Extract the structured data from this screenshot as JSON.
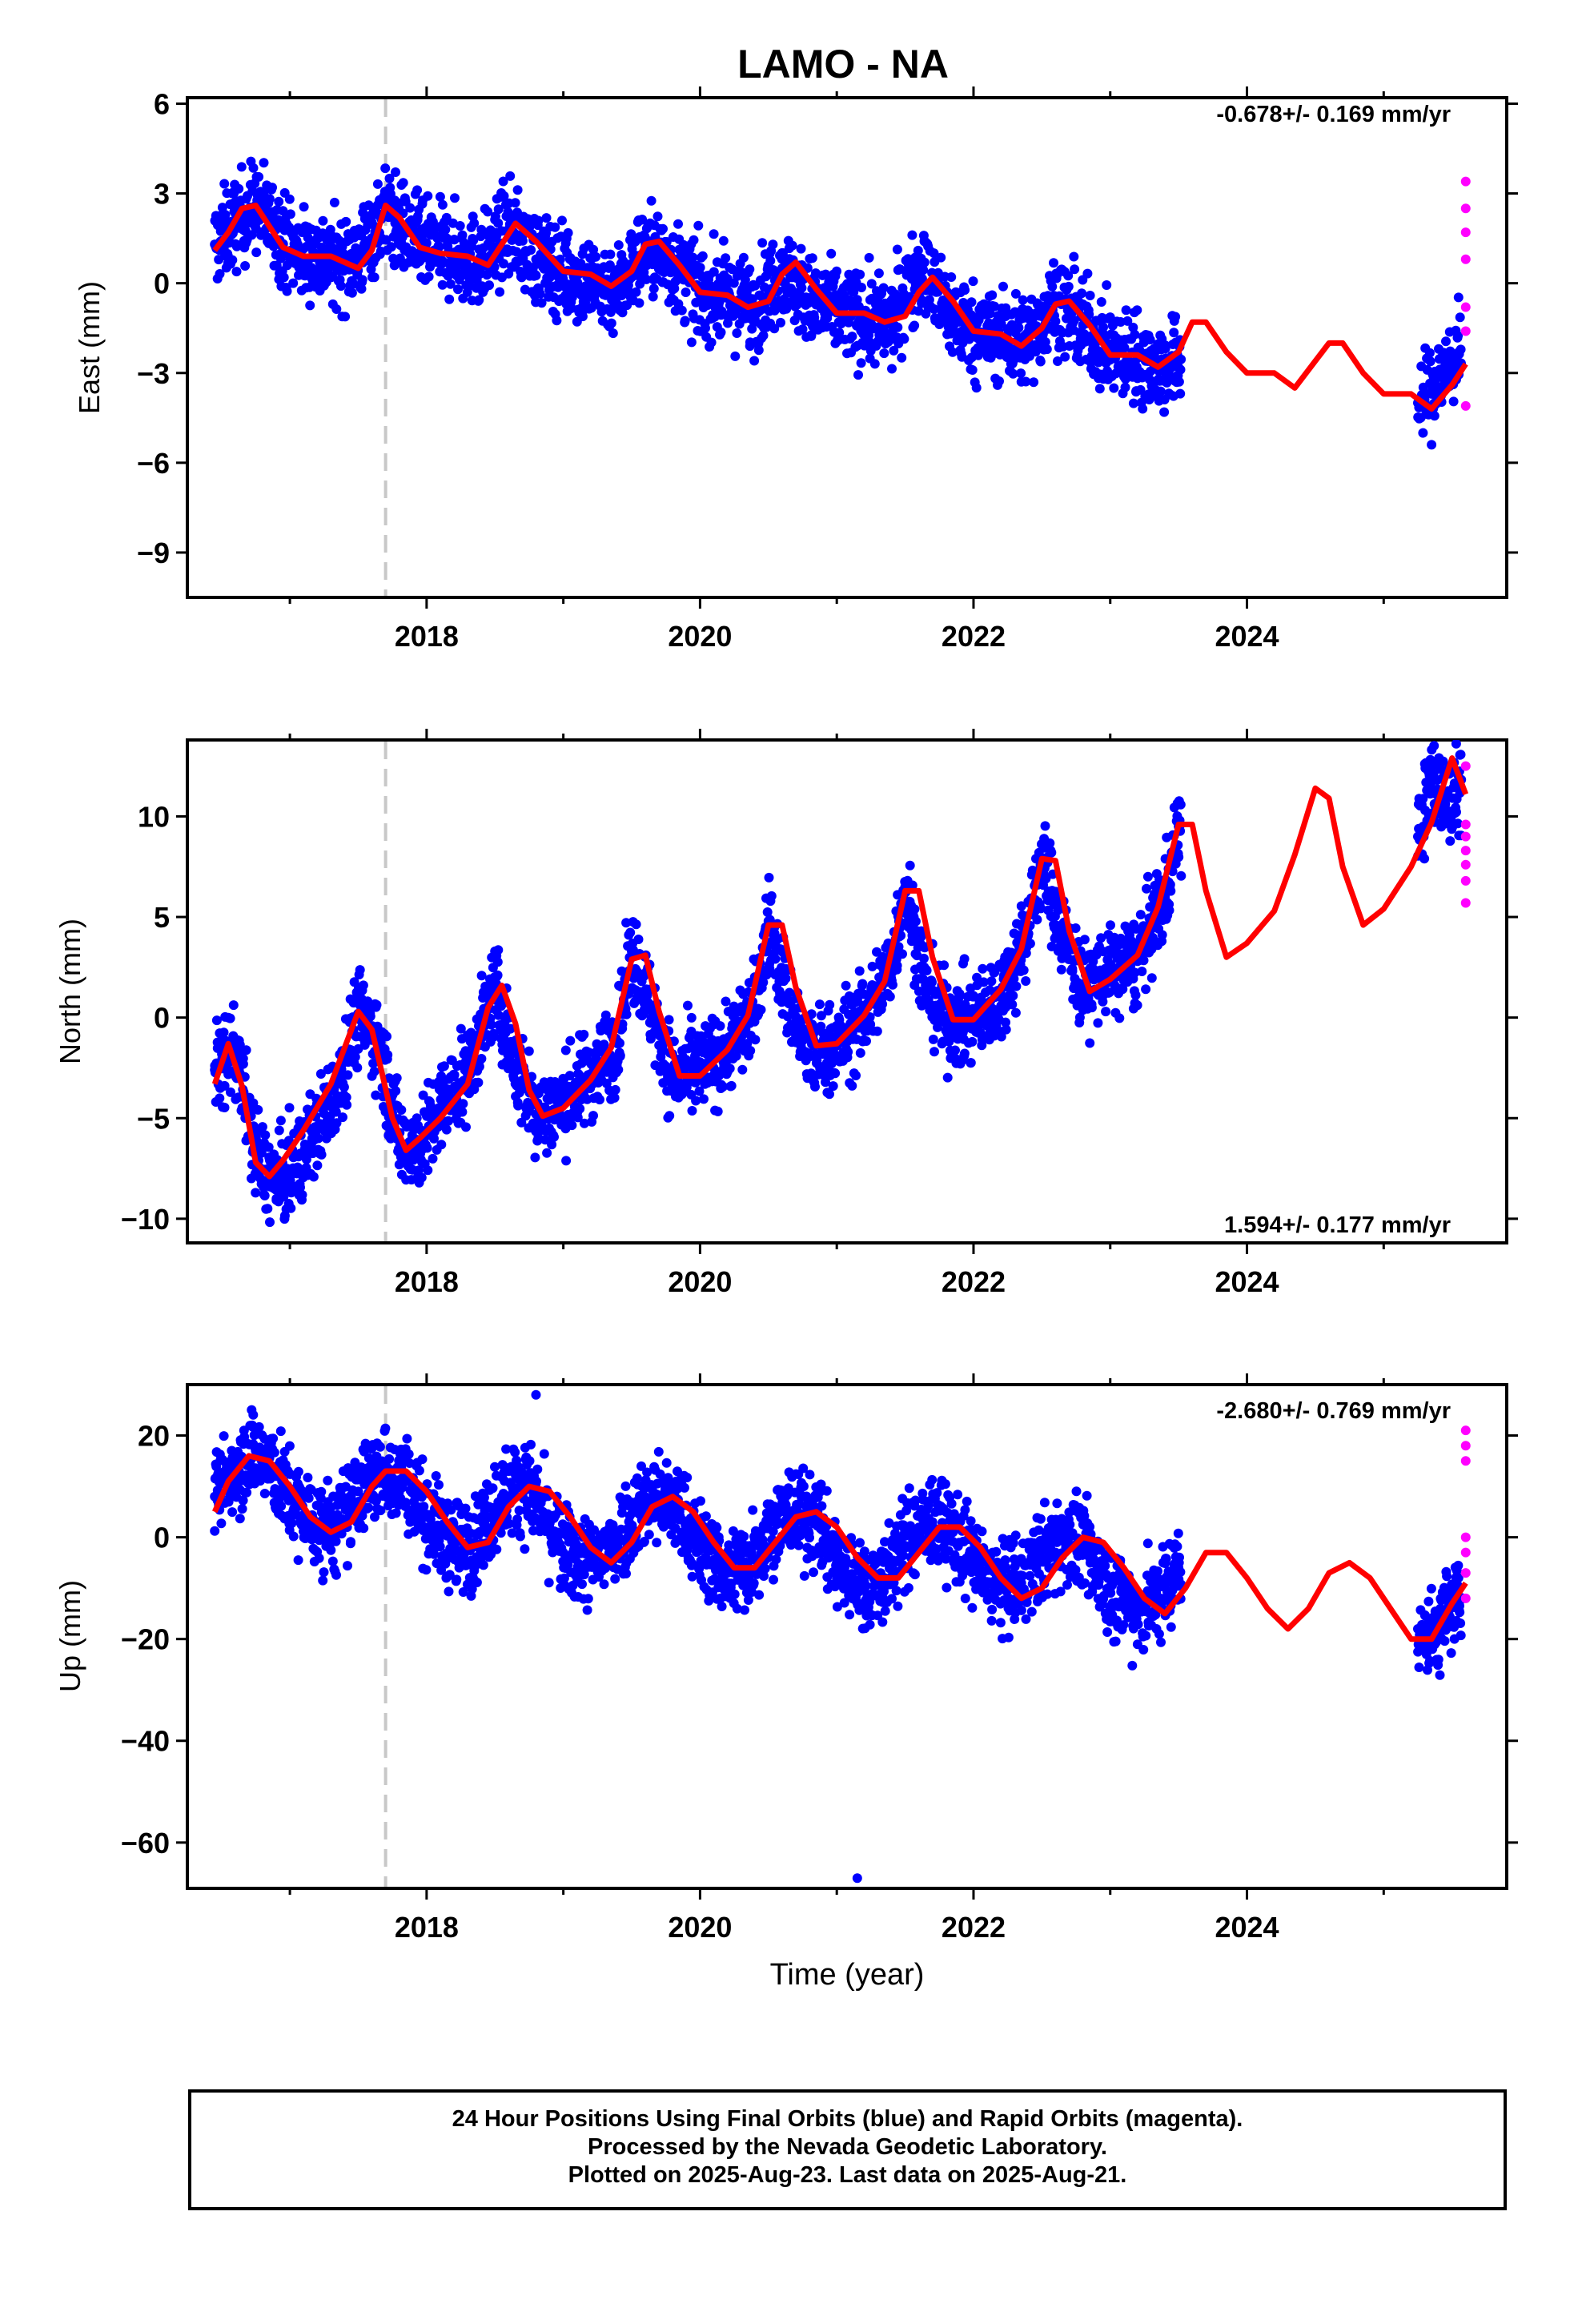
{
  "title": "LAMO - NA",
  "xlabel": "Time (year)",
  "x_ticks": [
    "2018",
    "2020",
    "2022",
    "2024"
  ],
  "colors": {
    "final": "#0000ff",
    "rapid": "#ff00ff",
    "model": "#ff0000",
    "offset_line": "#c8c8c8"
  },
  "footer": {
    "line1": "24 Hour Positions Using Final Orbits (blue) and Rapid Orbits (magenta).",
    "line2": "Processed by the Nevada Geodetic Laboratory.",
    "line3": "Plotted on 2025-Aug-23. Last data on 2025-Aug-21."
  },
  "chart_data": [
    {
      "type": "scatter",
      "component": "East",
      "ylabel": "East (mm)",
      "rate_label": "-0.678+/- 0.169 mm/yr",
      "rate_position": "top-right",
      "xlim": [
        2016.25,
        2025.9
      ],
      "ylim": [
        -10.5,
        6.2
      ],
      "y_ticks": [
        6,
        3,
        0,
        -3,
        -6,
        -9
      ],
      "y_tick_labels": [
        "6",
        "3",
        "0",
        "−3",
        "−6",
        "−9"
      ],
      "equipment_change": 2017.7,
      "final_orbits": {
        "x": [
          2016.45,
          2016.6,
          2016.75,
          2016.9,
          2017.05,
          2017.2,
          2017.35,
          2017.5,
          2017.7,
          2017.85,
          2018.0,
          2018.2,
          2018.4,
          2018.6,
          2018.8,
          2019.0,
          2019.2,
          2019.4,
          2019.6,
          2019.8,
          2020.0,
          2020.2,
          2020.4,
          2020.6,
          2020.8,
          2021.0,
          2021.2,
          2021.4,
          2021.6,
          2021.8,
          2022.0,
          2022.2,
          2022.4,
          2022.6,
          2022.8,
          2023.0,
          2023.2,
          2023.4,
          2023.5,
          2025.25,
          2025.35,
          2025.45,
          2025.55
        ],
        "y": [
          1.3,
          2.0,
          2.6,
          1.8,
          1.0,
          0.9,
          0.7,
          0.9,
          2.4,
          1.7,
          1.1,
          1.0,
          0.7,
          1.8,
          0.8,
          0.4,
          0.0,
          -0.2,
          1.2,
          0.6,
          -0.3,
          -0.5,
          -0.8,
          0.5,
          -0.6,
          -0.9,
          -1.2,
          -1.4,
          0.6,
          -0.9,
          -1.6,
          -1.8,
          -1.9,
          -0.6,
          -1.4,
          -2.3,
          -2.5,
          -2.9,
          -2.6,
          -4.0,
          -3.7,
          -2.9,
          -2.3
        ]
      },
      "rapid_orbits": {
        "x": [
          2025.6,
          2025.6,
          2025.6,
          2025.6,
          2025.6,
          2025.6,
          2025.6
        ],
        "y": [
          3.4,
          2.5,
          1.7,
          0.8,
          -0.8,
          -1.6,
          -4.1
        ]
      },
      "model": {
        "x": [
          2016.45,
          2016.55,
          2016.65,
          2016.75,
          2016.85,
          2016.95,
          2017.1,
          2017.3,
          2017.5,
          2017.6,
          2017.7,
          2017.8,
          2017.95,
          2018.1,
          2018.3,
          2018.45,
          2018.55,
          2018.65,
          2018.8,
          2019.0,
          2019.2,
          2019.35,
          2019.5,
          2019.6,
          2019.7,
          2019.85,
          2020.0,
          2020.2,
          2020.35,
          2020.5,
          2020.6,
          2020.7,
          2020.85,
          2021.0,
          2021.2,
          2021.35,
          2021.5,
          2021.6,
          2021.7,
          2021.85,
          2022.0,
          2022.2,
          2022.35,
          2022.5,
          2022.6,
          2022.7,
          2022.85,
          2023.0,
          2023.2,
          2023.35,
          2023.5,
          2023.6,
          2023.7,
          2023.85,
          2024.0,
          2024.2,
          2024.35,
          2024.5,
          2024.6,
          2024.7,
          2024.85,
          2025.0,
          2025.2,
          2025.35,
          2025.5,
          2025.6
        ],
        "y": [
          1.1,
          1.7,
          2.5,
          2.6,
          1.9,
          1.2,
          0.9,
          0.9,
          0.5,
          1.1,
          2.6,
          2.2,
          1.2,
          1.0,
          0.9,
          0.6,
          1.3,
          2.0,
          1.4,
          0.4,
          0.3,
          -0.1,
          0.4,
          1.3,
          1.4,
          0.6,
          -0.3,
          -0.4,
          -0.8,
          -0.6,
          0.3,
          0.7,
          -0.2,
          -1.0,
          -1.0,
          -1.3,
          -1.1,
          -0.3,
          0.2,
          -0.6,
          -1.6,
          -1.7,
          -2.1,
          -1.5,
          -0.7,
          -0.6,
          -1.4,
          -2.4,
          -2.4,
          -2.8,
          -2.3,
          -1.3,
          -1.3,
          -2.3,
          -3.0,
          -3.0,
          -3.5,
          -2.6,
          -2.0,
          -2.0,
          -3.0,
          -3.7,
          -3.7,
          -4.2,
          -3.4,
          -2.7
        ]
      }
    },
    {
      "type": "scatter",
      "component": "North",
      "ylabel": "North (mm)",
      "rate_label": "1.594+/- 0.177 mm/yr",
      "rate_position": "bottom-right",
      "xlim": [
        2016.25,
        2025.9
      ],
      "ylim": [
        -11.2,
        13.8
      ],
      "y_ticks": [
        10,
        5,
        0,
        -5,
        -10
      ],
      "y_tick_labels": [
        "10",
        "5",
        "0",
        "−5",
        "−10"
      ],
      "equipment_change": 2017.7,
      "final_orbits": {
        "x": [
          2016.45,
          2016.6,
          2016.75,
          2016.9,
          2017.05,
          2017.2,
          2017.35,
          2017.5,
          2017.65,
          2017.8,
          2017.95,
          2018.1,
          2018.3,
          2018.5,
          2018.65,
          2018.8,
          2019.0,
          2019.2,
          2019.4,
          2019.5,
          2019.65,
          2019.8,
          2020.0,
          2020.2,
          2020.4,
          2020.5,
          2020.65,
          2020.8,
          2021.0,
          2021.2,
          2021.4,
          2021.5,
          2021.65,
          2021.8,
          2022.0,
          2022.2,
          2022.4,
          2022.5,
          2022.65,
          2022.8,
          2023.0,
          2023.2,
          2023.4,
          2023.5,
          2025.25,
          2025.35,
          2025.45,
          2025.55
        ],
        "y": [
          -2.6,
          -1.5,
          -6.8,
          -8.3,
          -7.5,
          -5.6,
          -3.2,
          0.2,
          -1.1,
          -6.1,
          -6.4,
          -4.5,
          -2.8,
          1.4,
          -2.4,
          -4.8,
          -4.2,
          -2.8,
          -1.2,
          3.3,
          0.3,
          -3.0,
          -2.6,
          -1.5,
          0.4,
          4.8,
          0.7,
          -1.9,
          -1.4,
          0.0,
          2.6,
          6.5,
          1.6,
          -0.3,
          -0.2,
          1.0,
          4.5,
          7.8,
          4.3,
          1.4,
          2.3,
          2.8,
          6.0,
          9.5,
          9.0,
          11.8,
          10.6,
          11.4
        ]
      },
      "rapid_orbits": {
        "x": [
          2025.6,
          2025.6,
          2025.6,
          2025.6,
          2025.6,
          2025.6,
          2025.6
        ],
        "y": [
          12.5,
          9.6,
          9.0,
          8.3,
          7.6,
          6.8,
          5.7
        ]
      },
      "model": {
        "x": [
          2016.45,
          2016.55,
          2016.65,
          2016.75,
          2016.85,
          2016.95,
          2017.1,
          2017.3,
          2017.5,
          2017.6,
          2017.75,
          2017.85,
          2017.95,
          2018.1,
          2018.3,
          2018.45,
          2018.55,
          2018.65,
          2018.75,
          2018.85,
          2019.0,
          2019.2,
          2019.35,
          2019.5,
          2019.6,
          2019.7,
          2019.85,
          2020.0,
          2020.2,
          2020.35,
          2020.5,
          2020.6,
          2020.7,
          2020.85,
          2021.0,
          2021.2,
          2021.35,
          2021.5,
          2021.6,
          2021.7,
          2021.85,
          2022.0,
          2022.2,
          2022.35,
          2022.5,
          2022.6,
          2022.7,
          2022.85,
          2023.0,
          2023.2,
          2023.35,
          2023.5,
          2023.6,
          2023.7,
          2023.85,
          2024.0,
          2024.2,
          2024.35,
          2024.5,
          2024.6,
          2024.7,
          2024.85,
          2025.0,
          2025.2,
          2025.35,
          2025.5,
          2025.6
        ],
        "y": [
          -3.3,
          -1.3,
          -3.4,
          -7.2,
          -7.9,
          -7.1,
          -5.6,
          -3.3,
          0.3,
          -0.6,
          -5.0,
          -6.6,
          -6.0,
          -5.0,
          -3.3,
          0.5,
          1.6,
          -0.3,
          -3.6,
          -4.9,
          -4.5,
          -3.1,
          -1.5,
          2.9,
          3.1,
          0.3,
          -2.9,
          -2.9,
          -1.6,
          0.1,
          4.6,
          4.6,
          1.5,
          -1.4,
          -1.3,
          0.1,
          1.8,
          6.3,
          6.3,
          3.0,
          -0.1,
          -0.1,
          1.4,
          3.4,
          7.9,
          7.8,
          4.3,
          1.3,
          1.9,
          3.1,
          5.5,
          9.6,
          9.6,
          6.3,
          3.0,
          3.7,
          5.3,
          8.1,
          11.4,
          10.9,
          7.5,
          4.6,
          5.4,
          7.5,
          9.7,
          12.9,
          11.1
        ]
      }
    },
    {
      "type": "scatter",
      "component": "Up",
      "ylabel": "Up (mm)",
      "rate_label": "-2.680+/- 0.769 mm/yr",
      "rate_position": "top-right",
      "xlim": [
        2016.25,
        2025.9
      ],
      "ylim": [
        -69,
        30
      ],
      "y_ticks": [
        20,
        0,
        -20,
        -40,
        -60
      ],
      "y_tick_labels": [
        "20",
        "0",
        "−20",
        "−40",
        "−60"
      ],
      "equipment_change": 2017.7,
      "final_orbits": {
        "x": [
          2016.45,
          2016.6,
          2016.75,
          2016.9,
          2017.05,
          2017.2,
          2017.35,
          2017.5,
          2017.7,
          2017.85,
          2018.0,
          2018.2,
          2018.35,
          2018.55,
          2018.7,
          2018.85,
          2019.0,
          2019.2,
          2019.35,
          2019.55,
          2019.7,
          2019.85,
          2020.0,
          2020.2,
          2020.35,
          2020.55,
          2020.7,
          2020.85,
          2021.0,
          2021.2,
          2021.35,
          2021.55,
          2021.7,
          2021.85,
          2022.0,
          2022.2,
          2022.35,
          2022.55,
          2022.7,
          2022.85,
          2023.0,
          2023.2,
          2023.35,
          2023.5,
          2025.25,
          2025.35,
          2025.45,
          2025.55
        ],
        "y": [
          8,
          14,
          17,
          12,
          6,
          2,
          2,
          9,
          13,
          11,
          4,
          -2,
          -1,
          8,
          11,
          5,
          -3,
          -5,
          -2,
          6,
          8,
          5,
          -2,
          -7,
          -5,
          3,
          5,
          3,
          -5,
          -10,
          -8,
          1,
          3,
          1,
          -5,
          -10,
          -9,
          -2,
          0,
          -4,
          -10,
          -14,
          -12,
          -6,
          -18,
          -20,
          -15,
          -12
        ]
      },
      "rapid_orbits": {
        "x": [
          2025.6,
          2025.6,
          2025.6,
          2025.6,
          2025.6,
          2025.6,
          2025.6
        ],
        "y": [
          21,
          18,
          15,
          0,
          -3,
          -7,
          -12
        ]
      },
      "outliers": {
        "x": [
          2021.15,
          2018.8
        ],
        "y": [
          -67,
          28
        ]
      },
      "model": {
        "x": [
          2016.45,
          2016.55,
          2016.7,
          2016.85,
          2017.0,
          2017.15,
          2017.3,
          2017.45,
          2017.6,
          2017.7,
          2017.85,
          2018.0,
          2018.15,
          2018.3,
          2018.45,
          2018.6,
          2018.75,
          2018.9,
          2019.05,
          2019.2,
          2019.35,
          2019.5,
          2019.65,
          2019.8,
          2019.95,
          2020.1,
          2020.25,
          2020.4,
          2020.55,
          2020.7,
          2020.85,
          2021.0,
          2021.15,
          2021.3,
          2021.45,
          2021.6,
          2021.75,
          2021.9,
          2022.05,
          2022.2,
          2022.35,
          2022.5,
          2022.65,
          2022.8,
          2022.95,
          2023.1,
          2023.25,
          2023.4,
          2023.55,
          2023.7,
          2023.85,
          2024.0,
          2024.15,
          2024.3,
          2024.45,
          2024.6,
          2024.75,
          2024.9,
          2025.05,
          2025.2,
          2025.35,
          2025.5,
          2025.6
        ],
        "y": [
          5,
          11,
          16,
          15,
          10,
          4,
          1,
          3,
          10,
          13,
          13,
          9,
          3,
          -2,
          -1,
          6,
          10,
          9,
          4,
          -2,
          -5,
          -1,
          6,
          8,
          5,
          -1,
          -6,
          -6,
          -1,
          4,
          5,
          2,
          -4,
          -8,
          -8,
          -3,
          2,
          2,
          -2,
          -8,
          -12,
          -10,
          -4,
          0,
          -1,
          -6,
          -12,
          -15,
          -10,
          -3,
          -3,
          -8,
          -14,
          -18,
          -14,
          -7,
          -5,
          -8,
          -14,
          -20,
          -20,
          -13,
          -9
        ]
      }
    }
  ]
}
